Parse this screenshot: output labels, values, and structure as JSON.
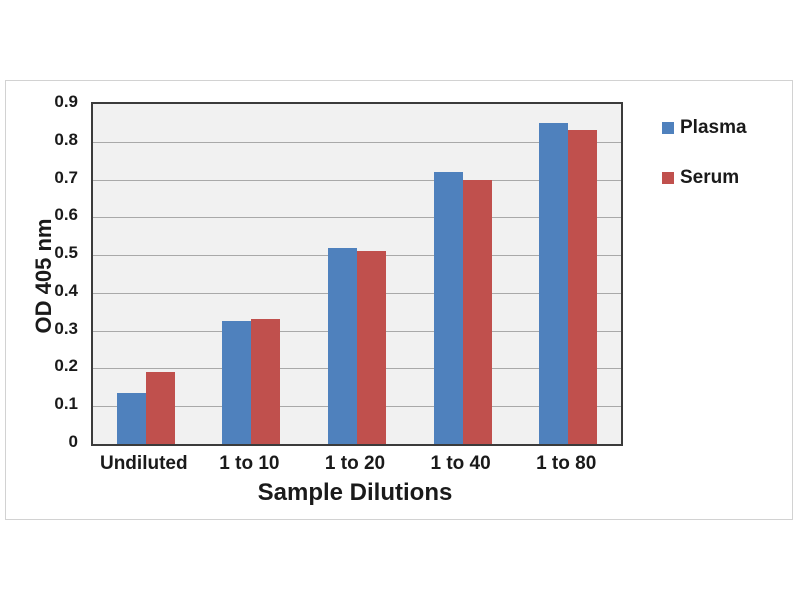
{
  "chart_data": {
    "type": "bar",
    "categories": [
      "Undiluted",
      "1 to 10",
      "1 to 20",
      "1 to 40",
      "1 to 80"
    ],
    "series": [
      {
        "name": "Plasma",
        "color": "#4F81BD",
        "values": [
          0.135,
          0.325,
          0.52,
          0.72,
          0.85
        ]
      },
      {
        "name": "Serum",
        "color": "#C0504D",
        "values": [
          0.19,
          0.33,
          0.51,
          0.7,
          0.83
        ]
      }
    ],
    "title": "",
    "xlabel": "Sample Dilutions",
    "ylabel": "OD 405 nm",
    "ylim": [
      0,
      0.9
    ],
    "ytick_step": 0.1,
    "y_tick_labels": [
      "0.9",
      "0.8",
      "0.7",
      "0.6",
      "0.5",
      "0.4",
      "0.3",
      "0.2",
      "0.1",
      "0"
    ],
    "grid": true,
    "legend_position": "right",
    "colors": {
      "plot_background": "#f1f1f1",
      "gridline": "#a9a9a9",
      "plot_border": "#3b3b3b",
      "frame_border": "#d2d2d2",
      "text": "#1a1a1a"
    }
  }
}
